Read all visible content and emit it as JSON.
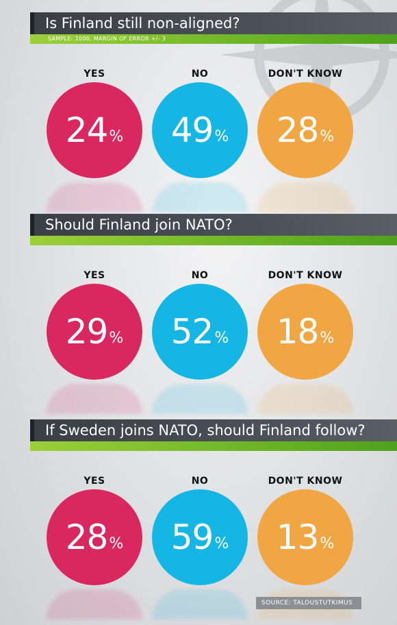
{
  "colors": {
    "yes": "#d8285f",
    "no": "#16b6e4",
    "dont_know": "#f0a642"
  },
  "icons": {
    "background": "nato-star-icon"
  },
  "source": "SOURCE: TALOUSTUTKIMUS",
  "chart_data": [
    {
      "type": "pie",
      "title": "Is Finland still non-aligned?",
      "subtitle": "SAMPLE: 1000, MARGIN OF ERROR +/- 3",
      "categories": [
        "YES",
        "NO",
        "DON'T KNOW"
      ],
      "values": [
        24,
        49,
        28
      ],
      "unit": "%"
    },
    {
      "type": "pie",
      "title": "Should Finland join NATO?",
      "subtitle": "",
      "categories": [
        "YES",
        "NO",
        "DON'T KNOW"
      ],
      "values": [
        29,
        52,
        18
      ],
      "unit": "%"
    },
    {
      "type": "pie",
      "title": "If Sweden joins NATO, should Finland follow?",
      "subtitle": "",
      "categories": [
        "YES",
        "NO",
        "DON'T KNOW"
      ],
      "values": [
        28,
        59,
        13
      ],
      "unit": "%"
    }
  ]
}
